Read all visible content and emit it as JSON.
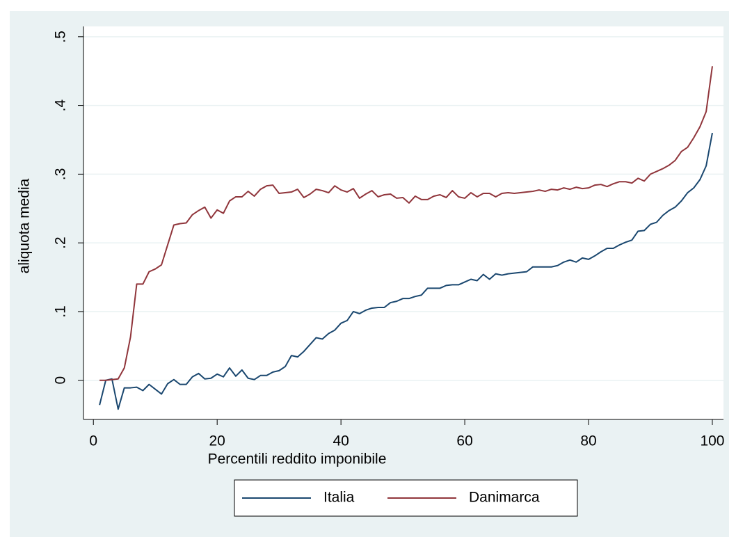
{
  "chart_data": {
    "type": "line",
    "x_label": "Percentili reddito imponibile",
    "y_label": "aliquota media",
    "x": [
      1,
      2,
      3,
      4,
      5,
      6,
      7,
      8,
      9,
      10,
      11,
      12,
      13,
      14,
      15,
      16,
      17,
      18,
      19,
      20,
      21,
      22,
      23,
      24,
      25,
      26,
      27,
      28,
      29,
      30,
      31,
      32,
      33,
      34,
      35,
      36,
      37,
      38,
      39,
      40,
      41,
      42,
      43,
      44,
      45,
      46,
      47,
      48,
      49,
      50,
      51,
      52,
      53,
      54,
      55,
      56,
      57,
      58,
      59,
      60,
      61,
      62,
      63,
      64,
      65,
      66,
      67,
      68,
      69,
      70,
      71,
      72,
      73,
      74,
      75,
      76,
      77,
      78,
      79,
      80,
      81,
      82,
      83,
      84,
      85,
      86,
      87,
      88,
      89,
      90,
      91,
      92,
      93,
      94,
      95,
      96,
      97,
      98,
      99,
      100
    ],
    "series": [
      {
        "name": "Italia",
        "color": "#1a476f",
        "values": [
          -0.036,
          0.0,
          0.002,
          -0.042,
          -0.011,
          -0.011,
          -0.01,
          -0.015,
          -0.006,
          -0.013,
          -0.02,
          -0.005,
          0.001,
          -0.006,
          -0.006,
          0.005,
          0.01,
          0.002,
          0.003,
          0.009,
          0.005,
          0.018,
          0.006,
          0.015,
          0.003,
          0.001,
          0.007,
          0.007,
          0.012,
          0.014,
          0.02,
          0.036,
          0.034,
          0.042,
          0.052,
          0.062,
          0.06,
          0.068,
          0.073,
          0.083,
          0.087,
          0.1,
          0.097,
          0.102,
          0.105,
          0.106,
          0.106,
          0.113,
          0.115,
          0.119,
          0.119,
          0.122,
          0.124,
          0.134,
          0.134,
          0.134,
          0.138,
          0.139,
          0.139,
          0.143,
          0.147,
          0.145,
          0.154,
          0.147,
          0.155,
          0.153,
          0.155,
          0.156,
          0.157,
          0.158,
          0.165,
          0.165,
          0.165,
          0.165,
          0.167,
          0.172,
          0.175,
          0.172,
          0.178,
          0.176,
          0.181,
          0.187,
          0.192,
          0.192,
          0.197,
          0.201,
          0.204,
          0.217,
          0.218,
          0.227,
          0.23,
          0.24,
          0.247,
          0.252,
          0.261,
          0.273,
          0.28,
          0.292,
          0.312,
          0.36
        ]
      },
      {
        "name": "Danimarca",
        "color": "#90353b",
        "values": [
          0,
          0,
          0.001,
          0.002,
          0.018,
          0.063,
          0.14,
          0.14,
          0.158,
          0.162,
          0.168,
          0.197,
          0.226,
          0.228,
          0.229,
          0.241,
          0.247,
          0.252,
          0.236,
          0.248,
          0.243,
          0.261,
          0.267,
          0.267,
          0.275,
          0.268,
          0.278,
          0.283,
          0.284,
          0.272,
          0.273,
          0.274,
          0.278,
          0.266,
          0.271,
          0.278,
          0.276,
          0.273,
          0.283,
          0.277,
          0.274,
          0.279,
          0.265,
          0.271,
          0.276,
          0.267,
          0.27,
          0.271,
          0.265,
          0.266,
          0.258,
          0.268,
          0.263,
          0.263,
          0.268,
          0.27,
          0.266,
          0.276,
          0.267,
          0.265,
          0.273,
          0.267,
          0.272,
          0.272,
          0.267,
          0.272,
          0.273,
          0.272,
          0.273,
          0.274,
          0.275,
          0.277,
          0.275,
          0.278,
          0.277,
          0.28,
          0.278,
          0.281,
          0.279,
          0.28,
          0.284,
          0.285,
          0.282,
          0.286,
          0.289,
          0.289,
          0.287,
          0.294,
          0.29,
          0.3,
          0.304,
          0.308,
          0.313,
          0.32,
          0.333,
          0.339,
          0.353,
          0.369,
          0.391,
          0.457
        ]
      }
    ],
    "xlim": [
      -1.6,
      101.8
    ],
    "ylim": [
      -0.057,
      0.515
    ],
    "xticks": [
      0,
      20,
      40,
      60,
      80,
      100
    ],
    "yticks": [
      0,
      {
        "value": 0.1,
        "label": ".1"
      },
      {
        "value": 0.2,
        "label": ".2"
      },
      {
        "value": 0.3,
        "label": ".3"
      },
      {
        "value": 0.4,
        "label": ".4"
      },
      {
        "value": 0.5,
        "label": ".5"
      }
    ],
    "grid": true,
    "legend": "bottom"
  }
}
